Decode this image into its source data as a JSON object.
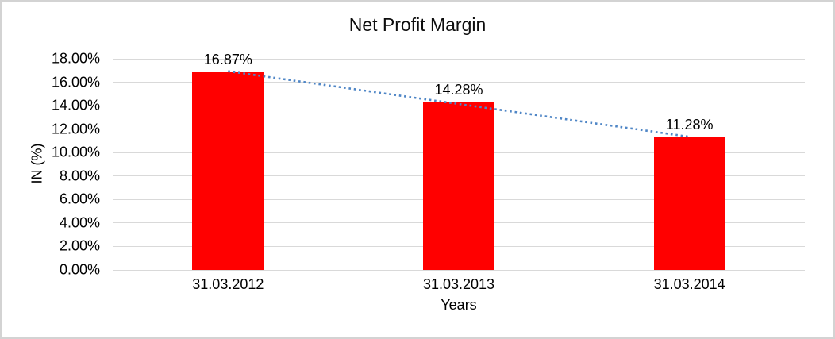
{
  "frame": {
    "background": "#ffffff",
    "border_color": "#d3d3d3"
  },
  "chart_data": {
    "type": "bar",
    "title": "Net Profit Margin",
    "categories": [
      "31.03.2012",
      "31.03.2013",
      "31.03.2014"
    ],
    "values": [
      16.87,
      14.28,
      11.28
    ],
    "data_labels": [
      "16.87%",
      "14.28%",
      "11.28%"
    ],
    "xlabel": "Years",
    "ylabel": "IN (%)",
    "ylim": [
      0,
      18
    ],
    "ytick_step": 2,
    "ytick_labels": [
      "0.00%",
      "2.00%",
      "4.00%",
      "6.00%",
      "8.00%",
      "10.00%",
      "12.00%",
      "14.00%",
      "16.00%",
      "18.00%"
    ],
    "bar_color": "#ff0000",
    "gridline_color": "#d9d9d9",
    "text_color": "#000000",
    "legend_position": "none",
    "grid": "horizontal",
    "trendline": {
      "type": "linear",
      "style": "dotted",
      "color": "#4f86c6",
      "from_value": 16.87,
      "to_value": 11.28
    }
  }
}
